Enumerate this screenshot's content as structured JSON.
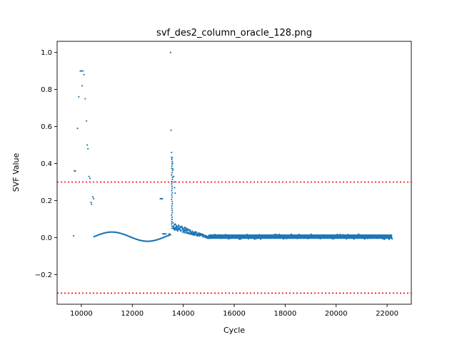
{
  "chart_data": {
    "type": "scatter",
    "title": "svf_des2_column_oracle_128.png",
    "xlabel": "Cycle",
    "ylabel": "SVF Value",
    "xlim": [
      9050,
      22950
    ],
    "ylim": [
      -0.36,
      1.06
    ],
    "xticks": [
      10000,
      12000,
      14000,
      16000,
      18000,
      20000,
      22000
    ],
    "xtick_labels": [
      "10000",
      "12000",
      "14000",
      "16000",
      "18000",
      "20000",
      "22000"
    ],
    "yticks": [
      -0.2,
      0.0,
      0.2,
      0.4,
      0.6,
      0.8,
      1.0
    ],
    "ytick_labels": [
      "−0.2",
      "0.0",
      "0.2",
      "0.4",
      "0.6",
      "0.8",
      "1.0"
    ],
    "grid": false,
    "legend": "none",
    "series_color": "#1f77b4",
    "threshold_color": "#ff0000",
    "thresholds": [
      0.3,
      -0.3
    ],
    "sparse_points": {
      "x": [
        9700,
        9730,
        9760,
        9850,
        9900,
        9960,
        10000,
        10030,
        10060,
        10100,
        10150,
        10200,
        10230,
        10260,
        10300,
        10340,
        10380,
        10400,
        10450,
        10480,
        13100,
        13150,
        13180,
        13200,
        13240,
        13280,
        13320,
        13400,
        13450,
        13500,
        13520,
        13540,
        13560,
        13580,
        13600,
        13620,
        13640,
        13660,
        13680
      ],
      "y": [
        0.01,
        0.36,
        0.36,
        0.59,
        0.76,
        0.9,
        0.9,
        0.82,
        0.9,
        0.88,
        0.75,
        0.63,
        0.5,
        0.48,
        0.33,
        0.32,
        0.19,
        0.18,
        0.22,
        0.21,
        0.21,
        0.21,
        0.21,
        0.02,
        0.02,
        0.02,
        0.02,
        0.01,
        0.02,
        1.0,
        0.58,
        0.46,
        0.43,
        0.4,
        0.37,
        0.33,
        0.3,
        0.27,
        0.24
      ]
    },
    "spike_column": {
      "x": 13560,
      "y_min": 0.05,
      "y_max": 0.44
    },
    "wave_segment": {
      "x_start": 10500,
      "x_end": 13500,
      "amplitude": 0.025,
      "period_cycles": 2800,
      "offset": 0.005
    },
    "decay_segment": {
      "x_start": 13600,
      "x_end": 15000,
      "y_start": 0.06,
      "y_end": 0.0,
      "spread": 0.03
    },
    "noise_band": {
      "x_start": 15000,
      "x_end": 22200,
      "y_center": 0.005,
      "half_width": 0.012
    }
  }
}
